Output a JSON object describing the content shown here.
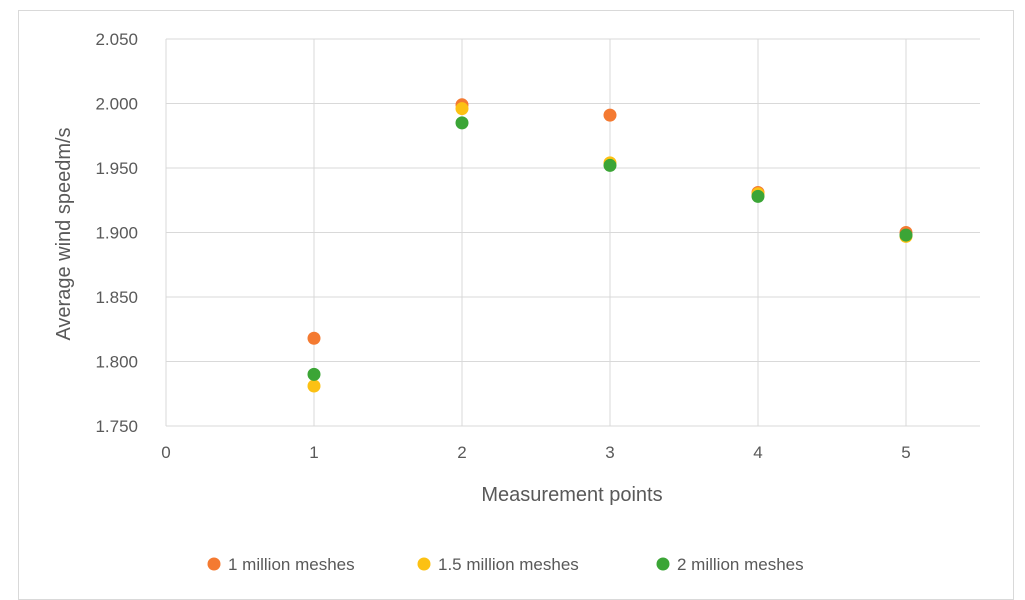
{
  "chart_data": {
    "type": "scatter",
    "title": "",
    "xlabel": "Measurement points",
    "ylabel": "Average wind speedm/s",
    "xlim": [
      0,
      5.5
    ],
    "ylim": [
      1.75,
      2.05
    ],
    "x_ticks": [
      "0",
      "1",
      "2",
      "3",
      "4",
      "5"
    ],
    "x_tick_values": [
      0,
      1,
      2,
      3,
      4,
      5
    ],
    "y_ticks": [
      "1.750",
      "1.800",
      "1.850",
      "1.900",
      "1.950",
      "2.000",
      "2.050"
    ],
    "y_tick_values": [
      1.75,
      1.8,
      1.85,
      1.9,
      1.95,
      2.0,
      2.05
    ],
    "grid": true,
    "legend_position": "bottom",
    "series": [
      {
        "name": "1 million meshes",
        "color": "#f47a31",
        "x": [
          1,
          2,
          3,
          4,
          5
        ],
        "y": [
          1.818,
          1.999,
          1.991,
          1.931,
          1.9
        ]
      },
      {
        "name": "1.5 million meshes",
        "color": "#fcc113",
        "x": [
          1,
          2,
          3,
          4,
          5
        ],
        "y": [
          1.781,
          1.996,
          1.954,
          1.93,
          1.897
        ]
      },
      {
        "name": "2 million meshes",
        "color": "#3ba536",
        "x": [
          1,
          2,
          3,
          4,
          5
        ],
        "y": [
          1.79,
          1.985,
          1.952,
          1.928,
          1.898
        ]
      }
    ]
  }
}
